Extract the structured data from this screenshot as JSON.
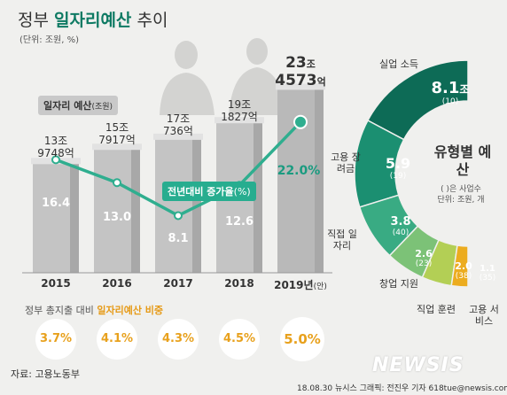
{
  "title": {
    "prefix": "정부",
    "highlight": "일자리예산",
    "suffix": "추이"
  },
  "unit": "(단위: 조원, %)",
  "legend": {
    "budget": "일자리 예산",
    "budget_unit": "(조원)",
    "rate": "전년대비 증가율",
    "rate_unit": "(%)"
  },
  "years": [
    "2015",
    "2016",
    "2017",
    "2018",
    "2019년"
  ],
  "year_suffix": "(안)",
  "amounts": [
    {
      "l1": "13조",
      "l2": "9748억"
    },
    {
      "l1": "15조",
      "l2": "7917억"
    },
    {
      "l1": "17조",
      "l2": "736억"
    },
    {
      "l1": "19조",
      "l2": "1827억"
    },
    {
      "l1": "23",
      "l1s": "조",
      "l2": "4573",
      "l2s": "억"
    }
  ],
  "rates_text": [
    "16.4",
    "13.0",
    "8.1",
    "12.6",
    "22.0%"
  ],
  "share": {
    "label_prefix": "정부 총지출 대비",
    "label_highlight": "일자리예산 비중",
    "values_text": [
      "3.7%",
      "4.1%",
      "4.3%",
      "4.5%",
      "5.0%"
    ]
  },
  "chart_data": [
    {
      "type": "bar",
      "title": "",
      "categories": [
        "2015",
        "2016",
        "2017",
        "2018",
        "2019"
      ],
      "series": [
        {
          "name": "일자리 예산(조원)",
          "values": [
            13.9748,
            15.7917,
            17.0736,
            19.1827,
            23.4573
          ]
        },
        {
          "name": "전년대비 증가율(%)",
          "values": [
            16.4,
            13.0,
            8.1,
            12.6,
            22.0
          ]
        }
      ],
      "ylabel": "",
      "grid": false
    },
    {
      "type": "pie",
      "title": "유형별 예산",
      "subtitle": "( )은 사업수",
      "unit": "단위: 조원, 개",
      "segments": [
        {
          "label": "실업 소득",
          "value": 8.1,
          "value_text": "8.1",
          "value_suffix": "조",
          "count": "(10)",
          "color": "#0d6b56"
        },
        {
          "label": "고용 장려금",
          "value": 5.9,
          "value_text": "5.9",
          "count": "(19)",
          "color": "#1b8f71"
        },
        {
          "label": "직접 일자리",
          "value": 3.8,
          "value_text": "3.8",
          "count": "(40)",
          "color": "#39ab83"
        },
        {
          "label": "창업 지원",
          "value": 2.6,
          "value_text": "2.6",
          "count": "(23)",
          "color": "#7cc277"
        },
        {
          "label": "직업 훈련",
          "value": 2.0,
          "value_text": "2.0",
          "count": "(38)",
          "color": "#b3cf55"
        },
        {
          "label": "고용 서비스",
          "value": 1.1,
          "value_text": "1.1",
          "count": "(35)",
          "color": "#ecac1f"
        }
      ]
    }
  ],
  "source": "자료: 고용노동부",
  "credit": "18.08.30 뉴시스 그래픽: 전진우 기자 618tue@newsis.com",
  "watermark": "NEWSIS"
}
